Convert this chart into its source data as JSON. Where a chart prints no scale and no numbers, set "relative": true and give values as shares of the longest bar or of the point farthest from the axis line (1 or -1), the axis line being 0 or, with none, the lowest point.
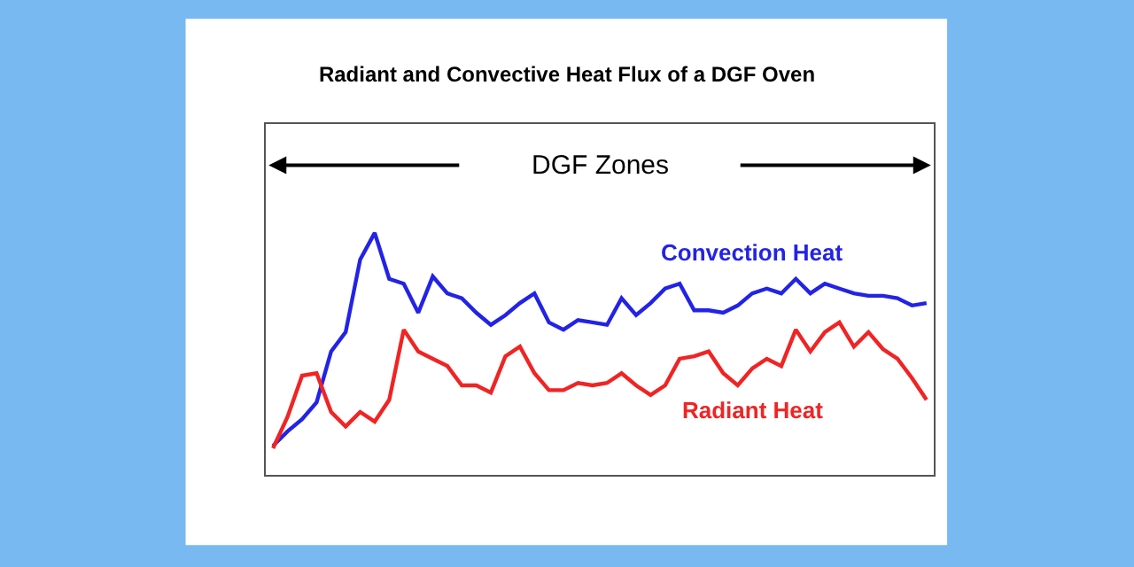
{
  "chart_data": {
    "type": "line",
    "title": "Radiant and Convective Heat Flux of a DGF Oven",
    "relative": true,
    "legend": false,
    "categories": [
      null,
      null,
      null,
      null,
      null,
      null,
      null,
      null,
      null,
      null,
      null,
      null,
      null,
      null,
      null,
      null,
      null,
      null,
      null,
      null,
      null,
      null,
      null,
      null,
      null,
      null,
      null,
      null,
      null,
      null,
      null,
      null,
      null,
      null,
      null,
      null,
      null,
      null,
      null,
      null,
      null,
      null,
      null,
      null,
      null,
      null
    ],
    "annotations": [
      "DGF Zones"
    ],
    "series": [
      {
        "name": "Convection Heat",
        "color": "#2323e6",
        "values": [
          0.12,
          0.18,
          0.23,
          0.3,
          0.51,
          0.59,
          0.89,
          1.0,
          0.81,
          0.79,
          0.67,
          0.82,
          0.75,
          0.73,
          0.67,
          0.62,
          0.66,
          0.71,
          0.75,
          0.63,
          0.6,
          0.64,
          0.63,
          0.62,
          0.73,
          0.66,
          0.71,
          0.77,
          0.79,
          0.68,
          0.68,
          0.67,
          0.7,
          0.75,
          0.77,
          0.75,
          0.81,
          0.75,
          0.79,
          0.77,
          0.75,
          0.74,
          0.74,
          0.73,
          0.7,
          0.71
        ]
      },
      {
        "name": "Radiant Heat",
        "color": "#f02424",
        "values": [
          0.11,
          0.24,
          0.41,
          0.42,
          0.26,
          0.2,
          0.26,
          0.22,
          0.31,
          0.6,
          0.51,
          0.48,
          0.45,
          0.37,
          0.37,
          0.34,
          0.49,
          0.53,
          0.42,
          0.35,
          0.35,
          0.38,
          0.37,
          0.38,
          0.42,
          0.37,
          0.33,
          0.37,
          0.48,
          0.49,
          0.51,
          0.42,
          0.37,
          0.44,
          0.48,
          0.45,
          0.6,
          0.51,
          0.59,
          0.63,
          0.53,
          0.59,
          0.52,
          0.48,
          0.4,
          0.31
        ]
      }
    ]
  }
}
